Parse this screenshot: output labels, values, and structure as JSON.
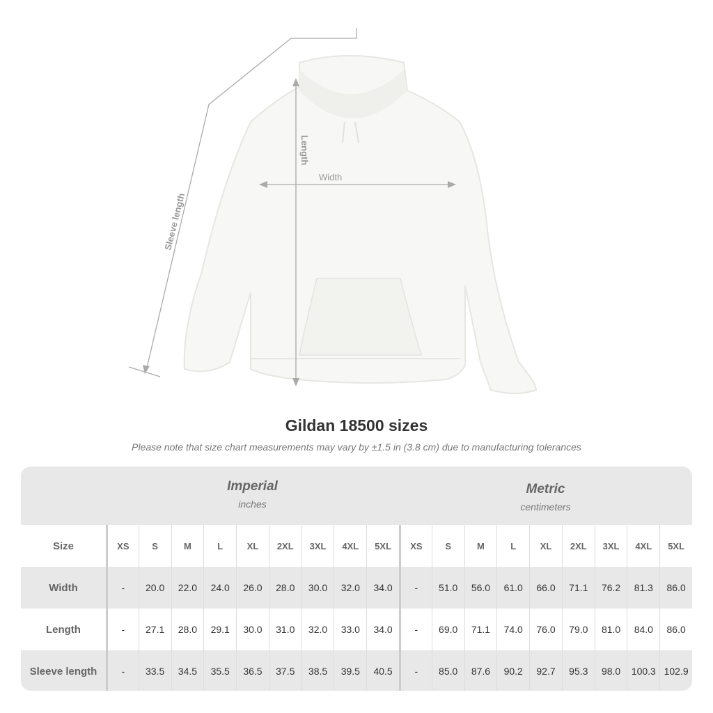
{
  "illustration": {
    "labels": {
      "sleeve": "Sleeve length",
      "length": "Length",
      "width": "Width"
    }
  },
  "title": "Gildan 18500 sizes",
  "subtitle": "Please note that size chart measurements may vary by ±1.5 in (3.8 cm) due to manufacturing tolerances",
  "table": {
    "imperial": {
      "name": "Imperial",
      "unit": "inches"
    },
    "metric": {
      "name": "Metric",
      "unit": "centimeters"
    },
    "size_header": "Size",
    "sizes": [
      "XS",
      "S",
      "M",
      "L",
      "XL",
      "2XL",
      "3XL",
      "4XL",
      "5XL"
    ],
    "rows": [
      {
        "label": "Width",
        "imperial": [
          "-",
          "20.0",
          "22.0",
          "24.0",
          "26.0",
          "28.0",
          "30.0",
          "32.0",
          "34.0"
        ],
        "metric": [
          "-",
          "51.0",
          "56.0",
          "61.0",
          "66.0",
          "71.1",
          "76.2",
          "81.3",
          "86.0"
        ]
      },
      {
        "label": "Length",
        "imperial": [
          "-",
          "27.1",
          "28.0",
          "29.1",
          "30.0",
          "31.0",
          "32.0",
          "33.0",
          "34.0"
        ],
        "metric": [
          "-",
          "69.0",
          "71.1",
          "74.0",
          "76.0",
          "79.0",
          "81.0",
          "84.0",
          "86.0"
        ]
      },
      {
        "label": "Sleeve length",
        "imperial": [
          "-",
          "33.5",
          "34.5",
          "35.5",
          "36.5",
          "37.5",
          "38.5",
          "39.5",
          "40.5"
        ],
        "metric": [
          "-",
          "85.0",
          "87.6",
          "90.2",
          "92.7",
          "95.3",
          "98.0",
          "100.3",
          "102.9"
        ]
      }
    ]
  }
}
